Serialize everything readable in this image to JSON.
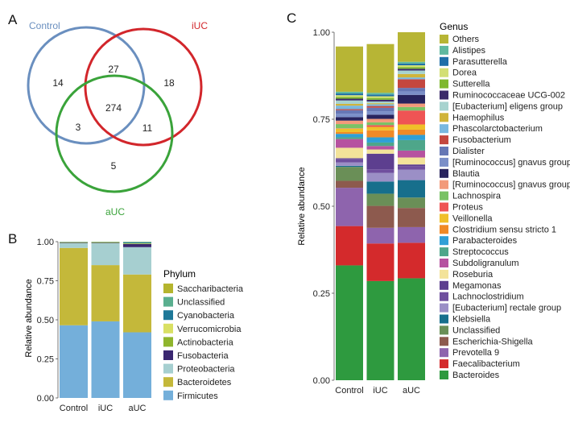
{
  "panels": {
    "a": "A",
    "b": "B",
    "c": "C"
  },
  "venn": {
    "sets": [
      {
        "name": "Control",
        "color": "#6a8fbf"
      },
      {
        "name": "iUC",
        "color": "#d2262b"
      },
      {
        "name": "aUC",
        "color": "#3aa33a"
      }
    ],
    "counts": {
      "control_only": "14",
      "iuc_only": "18",
      "auc_only": "5",
      "control_iuc": "27",
      "control_auc": "3",
      "iuc_auc": "11",
      "all_three": "274"
    }
  },
  "chart_data": [
    {
      "type": "bar",
      "stacked": true,
      "title": "",
      "xlabel": "",
      "ylabel": "Relative abundance",
      "ylim": [
        0,
        1
      ],
      "yticks": [
        "0.00",
        "0.25",
        "0.50",
        "0.75",
        "1.00"
      ],
      "categories": [
        "Control",
        "iUC",
        "aUC"
      ],
      "legend_title": "Phylum",
      "legend_position": "right",
      "series": [
        {
          "name": "Firmicutes",
          "color": "#74afda",
          "values": [
            0.465,
            0.49,
            0.42
          ]
        },
        {
          "name": "Bacteroidetes",
          "color": "#c4b83a",
          "values": [
            0.495,
            0.36,
            0.37
          ]
        },
        {
          "name": "Proteobacteria",
          "color": "#a6cfd0",
          "values": [
            0.03,
            0.14,
            0.175
          ]
        },
        {
          "name": "Fusobacteria",
          "color": "#3a2770",
          "values": [
            0.003,
            0.003,
            0.02
          ]
        },
        {
          "name": "Actinobacteria",
          "color": "#8fb52c",
          "values": [
            0.002,
            0.004,
            0.003
          ]
        },
        {
          "name": "Verrucomicrobia",
          "color": "#d9e063",
          "values": [
            0.001,
            0.001,
            0.002
          ]
        },
        {
          "name": "Cyanobacteria",
          "color": "#1e7898",
          "values": [
            0.001,
            0.001,
            0.005
          ]
        },
        {
          "name": "Unclassified",
          "color": "#5aaf8f",
          "values": [
            0.002,
            0.001,
            0.004
          ]
        },
        {
          "name": "Saccharibacteria",
          "color": "#b5b52e",
          "values": [
            0.001,
            0.0,
            0.001
          ]
        }
      ]
    },
    {
      "type": "bar",
      "stacked": true,
      "title": "",
      "xlabel": "",
      "ylabel": "Relative abundance",
      "ylim": [
        0,
        1
      ],
      "yticks": [
        "0.00",
        "0.25",
        "0.50",
        "0.75",
        "1.00"
      ],
      "categories": [
        "Control",
        "iUC",
        "aUC"
      ],
      "legend_title": "Genus",
      "legend_position": "right",
      "series": [
        {
          "name": "Bacteroides",
          "color": "#2e9a3f",
          "values": [
            0.33,
            0.285,
            0.293
          ]
        },
        {
          "name": "Faecalibacterium",
          "color": "#d42a2c",
          "values": [
            0.113,
            0.108,
            0.102
          ]
        },
        {
          "name": "Prevotella 9",
          "color": "#8e64ad",
          "values": [
            0.11,
            0.045,
            0.045
          ]
        },
        {
          "name": "Escherichia-Shigella",
          "color": "#8d5a4e",
          "values": [
            0.02,
            0.063,
            0.055
          ]
        },
        {
          "name": "Unclassified",
          "color": "#6a8f57",
          "values": [
            0.04,
            0.035,
            0.03
          ]
        },
        {
          "name": "Klebsiella",
          "color": "#176f8c",
          "values": [
            0.003,
            0.035,
            0.05
          ]
        },
        {
          "name": "[Eubacterium] rectale group",
          "color": "#9b8fc6",
          "values": [
            0.01,
            0.025,
            0.03
          ]
        },
        {
          "name": "Lachnoclostridium",
          "color": "#6f4f9e",
          "values": [
            0.01,
            0.01,
            0.01
          ]
        },
        {
          "name": "Megamonas",
          "color": "#5d3f8f",
          "values": [
            0.002,
            0.045,
            0.005
          ]
        },
        {
          "name": "Roseburia",
          "color": "#f3e39a",
          "values": [
            0.03,
            0.012,
            0.02
          ]
        },
        {
          "name": "Subdoligranulum",
          "color": "#b652a0",
          "values": [
            0.025,
            0.01,
            0.02
          ]
        },
        {
          "name": "Streptococcus",
          "color": "#4ea68a",
          "values": [
            0.005,
            0.01,
            0.03
          ]
        },
        {
          "name": "Parabacteroides",
          "color": "#2f9fd6",
          "values": [
            0.01,
            0.015,
            0.015
          ]
        },
        {
          "name": "Clostridium sensu stricto 1",
          "color": "#f08a27",
          "values": [
            0.005,
            0.02,
            0.015
          ]
        },
        {
          "name": "Veillonella",
          "color": "#f0bf29",
          "values": [
            0.01,
            0.01,
            0.015
          ]
        },
        {
          "name": "Proteus",
          "color": "#ef5454",
          "values": [
            0.001,
            0.005,
            0.04
          ]
        },
        {
          "name": "Lachnospira",
          "color": "#79c266",
          "values": [
            0.012,
            0.008,
            0.01
          ]
        },
        {
          "name": "[Ruminococcus] gnavus group",
          "color": "#f29a7a",
          "values": [
            0.01,
            0.01,
            0.01
          ]
        },
        {
          "name": "Blautia",
          "color": "#28245e",
          "values": [
            0.01,
            0.012,
            0.025
          ]
        },
        {
          "name": "[Ruminococcus] gnavus group",
          "color": "#7b8fc8",
          "values": [
            0.01,
            0.01,
            0.01
          ]
        },
        {
          "name": "Dialister",
          "color": "#6677b5",
          "values": [
            0.01,
            0.01,
            0.01
          ]
        },
        {
          "name": "Fusobacterium",
          "color": "#c4473f",
          "values": [
            0.003,
            0.005,
            0.025
          ]
        },
        {
          "name": "Phascolarctobacterium",
          "color": "#79b8e0",
          "values": [
            0.01,
            0.005,
            0.005
          ]
        },
        {
          "name": "Haemophilus",
          "color": "#d0b43a",
          "values": [
            0.005,
            0.003,
            0.01
          ]
        },
        {
          "name": "[Eubacterium] eligens group",
          "color": "#a7d3cf",
          "values": [
            0.01,
            0.005,
            0.01
          ]
        },
        {
          "name": "Ruminococcaceae UCG-002",
          "color": "#3c2a6a",
          "values": [
            0.005,
            0.005,
            0.005
          ]
        },
        {
          "name": "Sutterella",
          "color": "#7fb82e",
          "values": [
            0.005,
            0.005,
            0.005
          ]
        },
        {
          "name": "Dorea",
          "color": "#d3df74",
          "values": [
            0.005,
            0.005,
            0.005
          ]
        },
        {
          "name": "Parasutterella",
          "color": "#1f6fa8",
          "values": [
            0.005,
            0.005,
            0.005
          ]
        },
        {
          "name": "Alistipes",
          "color": "#5fb9a0",
          "values": [
            0.005,
            0.005,
            0.005
          ]
        },
        {
          "name": "Others",
          "color": "#b7b535",
          "values": [
            0.13,
            0.14,
            0.085
          ]
        }
      ]
    }
  ]
}
